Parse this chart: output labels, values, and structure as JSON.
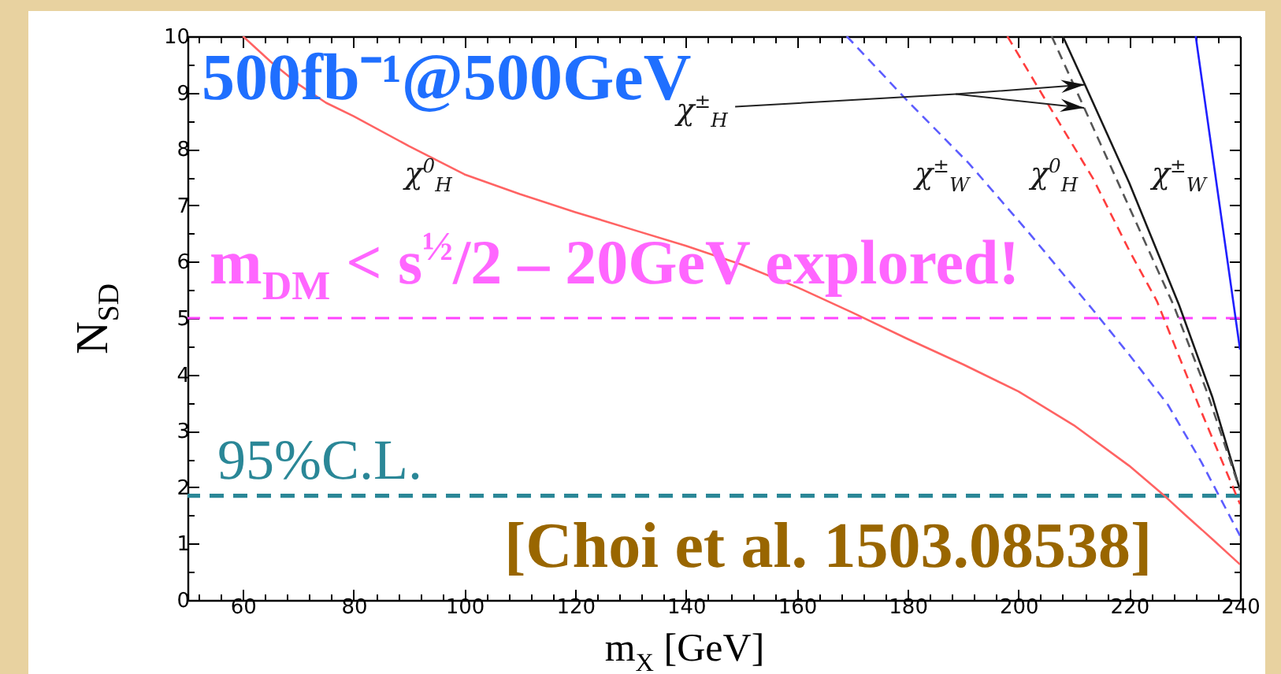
{
  "chart_data": {
    "type": "line",
    "xlabel": "m$_{X}$ [GeV]",
    "ylabel": "N$_{SD}$",
    "xlim": [
      50,
      240
    ],
    "ylim": [
      0,
      10
    ],
    "xticks": [
      {
        "value": 52,
        "label": null
      },
      {
        "value": 56,
        "label": null
      },
      60,
      {
        "value": 64,
        "label": null
      },
      {
        "value": 68,
        "label": null
      },
      {
        "value": 72,
        "label": null
      },
      {
        "value": 76,
        "label": null
      },
      80,
      {
        "value": 84,
        "label": null
      },
      {
        "value": 88,
        "label": null
      },
      {
        "value": 92,
        "label": null
      },
      {
        "value": 96,
        "label": null
      },
      100,
      {
        "value": 104,
        "label": null
      },
      {
        "value": 108,
        "label": null
      },
      {
        "value": 112,
        "label": null
      },
      {
        "value": 116,
        "label": null
      },
      120,
      {
        "value": 124,
        "label": null
      },
      {
        "value": 128,
        "label": null
      },
      {
        "value": 132,
        "label": null
      },
      {
        "value": 136,
        "label": null
      },
      140,
      {
        "value": 144,
        "label": null
      },
      {
        "value": 148,
        "label": null
      },
      {
        "value": 152,
        "label": null
      },
      {
        "value": 156,
        "label": null
      },
      160,
      {
        "value": 164,
        "label": null
      },
      {
        "value": 168,
        "label": null
      },
      {
        "value": 172,
        "label": null
      },
      {
        "value": 176,
        "label": null
      },
      180,
      {
        "value": 184,
        "label": null
      },
      {
        "value": 188,
        "label": null
      },
      {
        "value": 192,
        "label": null
      },
      {
        "value": 196,
        "label": null
      },
      200,
      {
        "value": 204,
        "label": null
      },
      {
        "value": 208,
        "label": null
      },
      {
        "value": 212,
        "label": null
      },
      {
        "value": 216,
        "label": null
      },
      220,
      {
        "value": 224,
        "label": null
      },
      {
        "value": 228,
        "label": null
      },
      {
        "value": 232,
        "label": null
      },
      {
        "value": 236,
        "label": null
      },
      240
    ],
    "yticks": [
      0,
      {
        "value": 0.5,
        "label": null
      },
      1,
      {
        "value": 1.5,
        "label": null
      },
      2,
      {
        "value": 2.5,
        "label": null
      },
      3,
      {
        "value": 3.5,
        "label": null
      },
      4,
      {
        "value": 4.5,
        "label": null
      },
      5,
      {
        "value": 5.5,
        "label": null
      },
      6,
      {
        "value": 6.5,
        "label": null
      },
      7,
      {
        "value": 7.5,
        "label": null
      },
      8,
      {
        "value": 8.5,
        "label": null
      },
      9,
      {
        "value": 9.5,
        "label": null
      },
      10
    ],
    "series": [
      {
        "name": "χ$^{0}$$_{H}$",
        "color": "#ff6363",
        "line_style": "solid",
        "x": [
          60,
          65,
          70,
          75,
          80,
          90,
          100,
          110,
          120,
          130,
          140,
          150,
          160,
          170,
          180,
          190,
          200,
          210,
          220,
          226,
          230,
          235,
          240
        ],
        "values": [
          10,
          9.55,
          9.15,
          8.82,
          8.58,
          8.05,
          7.55,
          7.2,
          6.88,
          6.58,
          6.28,
          5.95,
          5.55,
          5.1,
          4.63,
          4.18,
          3.7,
          3.1,
          2.38,
          1.88,
          1.52,
          1.08,
          0.63
        ]
      },
      {
        "name": "χ$^{±}$$_{W}$",
        "color": "#5c5cff",
        "line_style": "dashed",
        "x": [
          169,
          180,
          191,
          202,
          213.5,
          220,
          227,
          233,
          240
        ],
        "values": [
          10,
          8.85,
          7.75,
          6.5,
          5.14,
          4.35,
          3.46,
          2.45,
          1.14
        ]
      },
      {
        "name": "χ$^{0}$$_{H}$",
        "color": "#ff3d3d",
        "line_style": "dashed",
        "x": [
          198,
          205,
          213.5,
          220,
          225,
          232.5,
          240
        ],
        "values": [
          10,
          8.85,
          7.47,
          6.2,
          5.3,
          3.46,
          1.7
        ]
      },
      {
        "color": "#1a1a1a",
        "line_style": "solid",
        "x": [
          208,
          212,
          220,
          229,
          235,
          240
        ],
        "values": [
          10,
          9.14,
          7.4,
          5.23,
          3.6,
          1.95
        ]
      },
      {
        "color": "#555555",
        "line_style": "dashed",
        "x": [
          206,
          212,
          218,
          228,
          234,
          240
        ],
        "values": [
          10,
          8.7,
          7.4,
          5.23,
          3.7,
          1.95
        ]
      },
      {
        "name": "χ$^{±}$$_{W}$",
        "color": "#1f1fff",
        "line_style": "solid",
        "x": [
          232,
          240
        ],
        "values": [
          10,
          4.44
        ]
      }
    ],
    "ref_lines": [
      {
        "axis": "y",
        "value": 5,
        "color": "#ff44ff",
        "line_style": "dashed"
      },
      {
        "axis": "y",
        "value": 1.85,
        "label": "95%C.L.",
        "color": "#2a8797",
        "line_style": "dashed"
      }
    ],
    "annotations": [
      "500fb⁻¹@500GeV",
      "m$_{DM}$ < s$^{½}$/2 – 20GeV explored!",
      "[Choi et al. 1503.08538]",
      {
        "text": "χ$^{±}$$_{H}$",
        "x": 212,
        "y": 9.14
      }
    ]
  }
}
